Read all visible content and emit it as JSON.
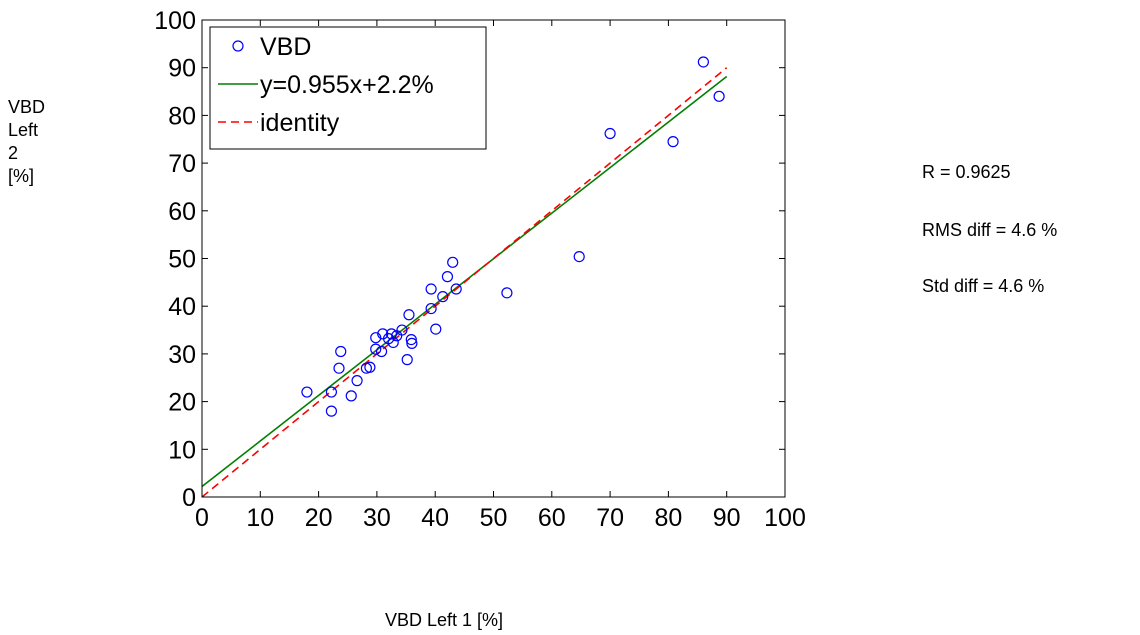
{
  "chart_data": {
    "type": "scatter",
    "xlabel": "VBD Left 1 [%]",
    "ylabel_lines": [
      "VBD",
      "Left",
      "2",
      "[%]"
    ],
    "xlim": [
      0,
      100
    ],
    "ylim": [
      0,
      100
    ],
    "xticks": [
      0,
      10,
      20,
      30,
      40,
      50,
      60,
      70,
      80,
      90,
      100
    ],
    "yticks": [
      0,
      10,
      20,
      30,
      40,
      50,
      60,
      70,
      80,
      90,
      100
    ],
    "grid": false,
    "legend_position": "top-left",
    "series": [
      {
        "name": "VBD",
        "kind": "marker",
        "marker": "circle",
        "color": "#0000ff",
        "points": [
          [
            18,
            22
          ],
          [
            22.2,
            22
          ],
          [
            22.2,
            18
          ],
          [
            23.5,
            27
          ],
          [
            23.8,
            30.5
          ],
          [
            25.6,
            21.2
          ],
          [
            26.6,
            24.4
          ],
          [
            28.2,
            27
          ],
          [
            28.8,
            27.2
          ],
          [
            29.8,
            31
          ],
          [
            29.8,
            33.4
          ],
          [
            30.8,
            30.5
          ],
          [
            31,
            34.2
          ],
          [
            32,
            33.2
          ],
          [
            32.5,
            34.2
          ],
          [
            32.8,
            32.4
          ],
          [
            33.4,
            33.8
          ],
          [
            34.3,
            35
          ],
          [
            35.2,
            28.8
          ],
          [
            35.5,
            38.2
          ],
          [
            35.9,
            33
          ],
          [
            36,
            32.2
          ],
          [
            39.3,
            39.5
          ],
          [
            39.3,
            43.6
          ],
          [
            40.1,
            35.2
          ],
          [
            41.3,
            42
          ],
          [
            42.1,
            46.2
          ],
          [
            43,
            49.2
          ],
          [
            43.6,
            43.6
          ],
          [
            52.3,
            42.8
          ],
          [
            64.7,
            50.4
          ],
          [
            70,
            76.2
          ],
          [
            80.8,
            74.5
          ],
          [
            86,
            91.2
          ],
          [
            88.7,
            84
          ]
        ]
      },
      {
        "name": "y=0.955x+2.2%",
        "kind": "line",
        "color": "#007f00",
        "slope": 0.955,
        "intercept": 2.2,
        "x_range": [
          0,
          90
        ],
        "dash": false
      },
      {
        "name": "identity",
        "kind": "line",
        "color": "#ff0000",
        "slope": 1,
        "intercept": 0,
        "x_range": [
          0,
          90
        ],
        "dash": true
      }
    ],
    "annotations": [
      "R = 0.9625",
      "RMS diff = 4.6 %",
      "Std diff = 4.6 %"
    ]
  }
}
